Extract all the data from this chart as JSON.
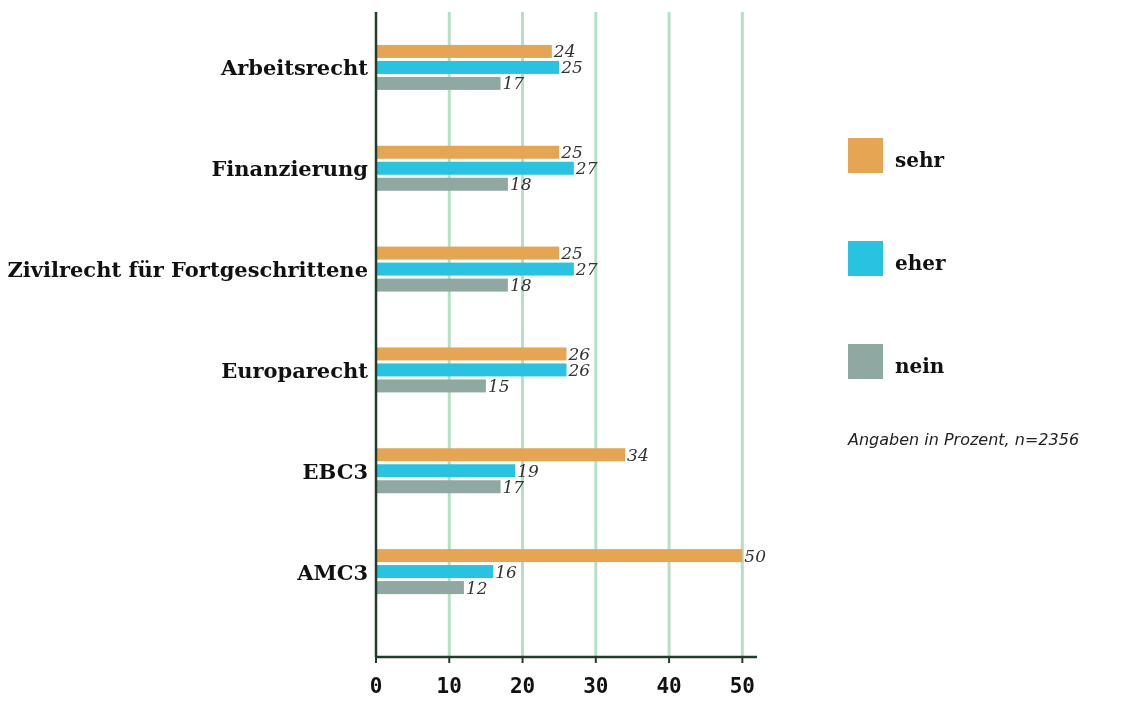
{
  "chart_data": {
    "type": "bar",
    "orientation": "horizontal",
    "categories": [
      "Arbeitsrecht",
      "Finanzierung",
      "Zivilrecht für Fortgeschrittene",
      "Europarecht",
      "EBC3",
      "AMC3"
    ],
    "series": [
      {
        "name": "sehr",
        "color": "#e5a552",
        "values": [
          24,
          25,
          25,
          26,
          34,
          50
        ]
      },
      {
        "name": "eher",
        "color": "#27c3e0",
        "values": [
          25,
          27,
          27,
          26,
          19,
          16
        ]
      },
      {
        "name": "nein",
        "color": "#8fa8a2",
        "values": [
          17,
          18,
          18,
          15,
          17,
          12
        ]
      }
    ],
    "xlim": [
      0,
      52
    ],
    "xticks": [
      0,
      10,
      20,
      30,
      40,
      50
    ],
    "grid": "x",
    "legend": "right",
    "data_labels": true,
    "annotations": [
      "Angaben in Prozent, n=2356"
    ]
  }
}
